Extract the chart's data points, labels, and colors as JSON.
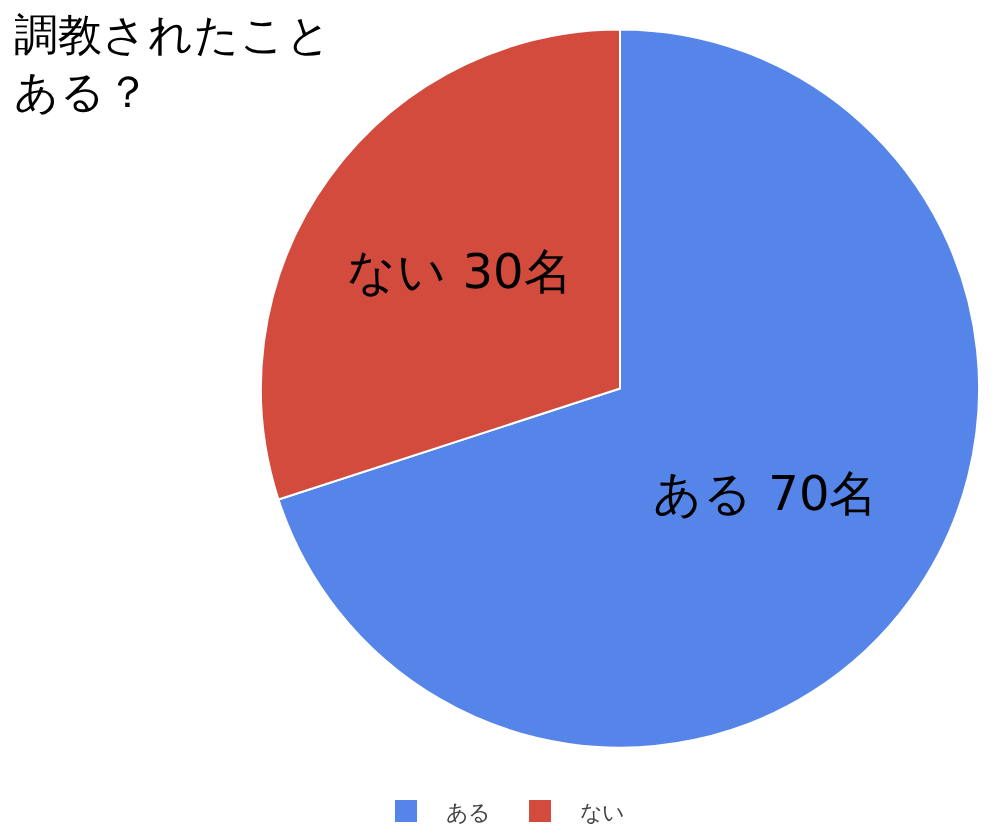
{
  "chart_data": {
    "type": "pie",
    "title": "調教されたことある？",
    "categories": [
      "ある",
      "ない"
    ],
    "values": [
      70,
      30
    ],
    "colors": [
      "#5585e8",
      "#d24b3d"
    ],
    "value_labels": [
      "ある 70名",
      "ない 30名"
    ],
    "legend": "bottom"
  }
}
